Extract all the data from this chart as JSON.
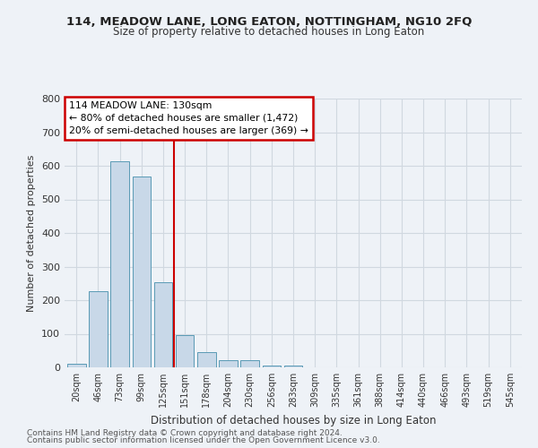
{
  "title1": "114, MEADOW LANE, LONG EATON, NOTTINGHAM, NG10 2FQ",
  "title2": "Size of property relative to detached houses in Long Eaton",
  "xlabel": "Distribution of detached houses by size in Long Eaton",
  "ylabel": "Number of detached properties",
  "footnote1": "Contains HM Land Registry data © Crown copyright and database right 2024.",
  "footnote2": "Contains public sector information licensed under the Open Government Licence v3.0.",
  "bar_labels": [
    "20sqm",
    "46sqm",
    "73sqm",
    "99sqm",
    "125sqm",
    "151sqm",
    "178sqm",
    "204sqm",
    "230sqm",
    "256sqm",
    "283sqm",
    "309sqm",
    "335sqm",
    "361sqm",
    "388sqm",
    "414sqm",
    "440sqm",
    "466sqm",
    "493sqm",
    "519sqm",
    "545sqm"
  ],
  "bar_heights": [
    10,
    228,
    614,
    567,
    254,
    95,
    46,
    22,
    22,
    6,
    6,
    0,
    0,
    0,
    0,
    0,
    0,
    0,
    0,
    0,
    0
  ],
  "bar_color": "#c8d8e8",
  "bar_edge_color": "#5a9ab5",
  "grid_color": "#d0d8e0",
  "background_color": "#eef2f7",
  "vline_x": 4.5,
  "vline_color": "#cc0000",
  "annotation_text": "114 MEADOW LANE: 130sqm\n← 80% of detached houses are smaller (1,472)\n20% of semi-detached houses are larger (369) →",
  "annotation_box_color": "#cc0000",
  "ylim": [
    0,
    800
  ],
  "yticks": [
    0,
    100,
    200,
    300,
    400,
    500,
    600,
    700,
    800
  ]
}
